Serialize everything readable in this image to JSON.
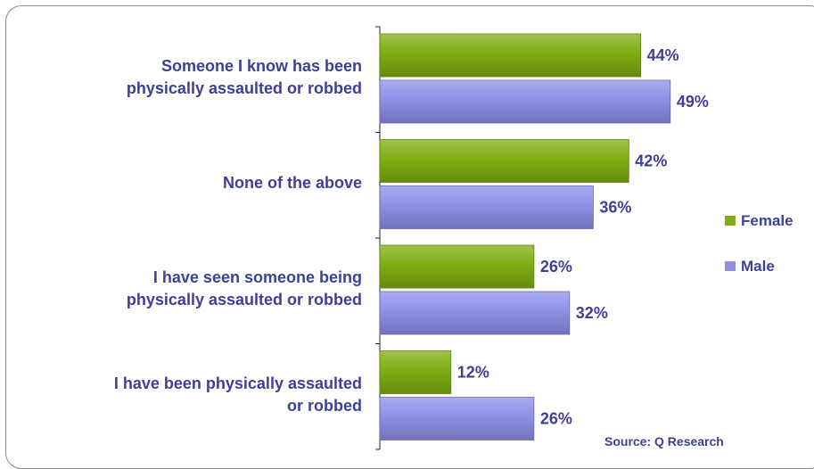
{
  "chart_data": {
    "type": "bar",
    "orientation": "horizontal",
    "categories": [
      "Someone I know has been\nphysically assaulted or robbed",
      "None of the above",
      "I have seen someone being\nphysically assaulted or robbed",
      "I have been physically assaulted\nor robbed"
    ],
    "series": [
      {
        "name": "Female",
        "values": [
          44,
          42,
          26,
          12
        ],
        "color": "#7fae12"
      },
      {
        "name": "Male",
        "values": [
          49,
          36,
          32,
          26
        ],
        "color": "#8f8fe8"
      }
    ],
    "value_suffix": "%",
    "xlim": [
      0,
      100
    ],
    "legend_position": "right",
    "grid": false
  },
  "legend": {
    "female_label": "Female",
    "male_label": "Male"
  },
  "source": "Source: Q Research",
  "colors": {
    "text": "#3f3f9a",
    "female": "#7fae12",
    "male": "#8f8fe8"
  }
}
